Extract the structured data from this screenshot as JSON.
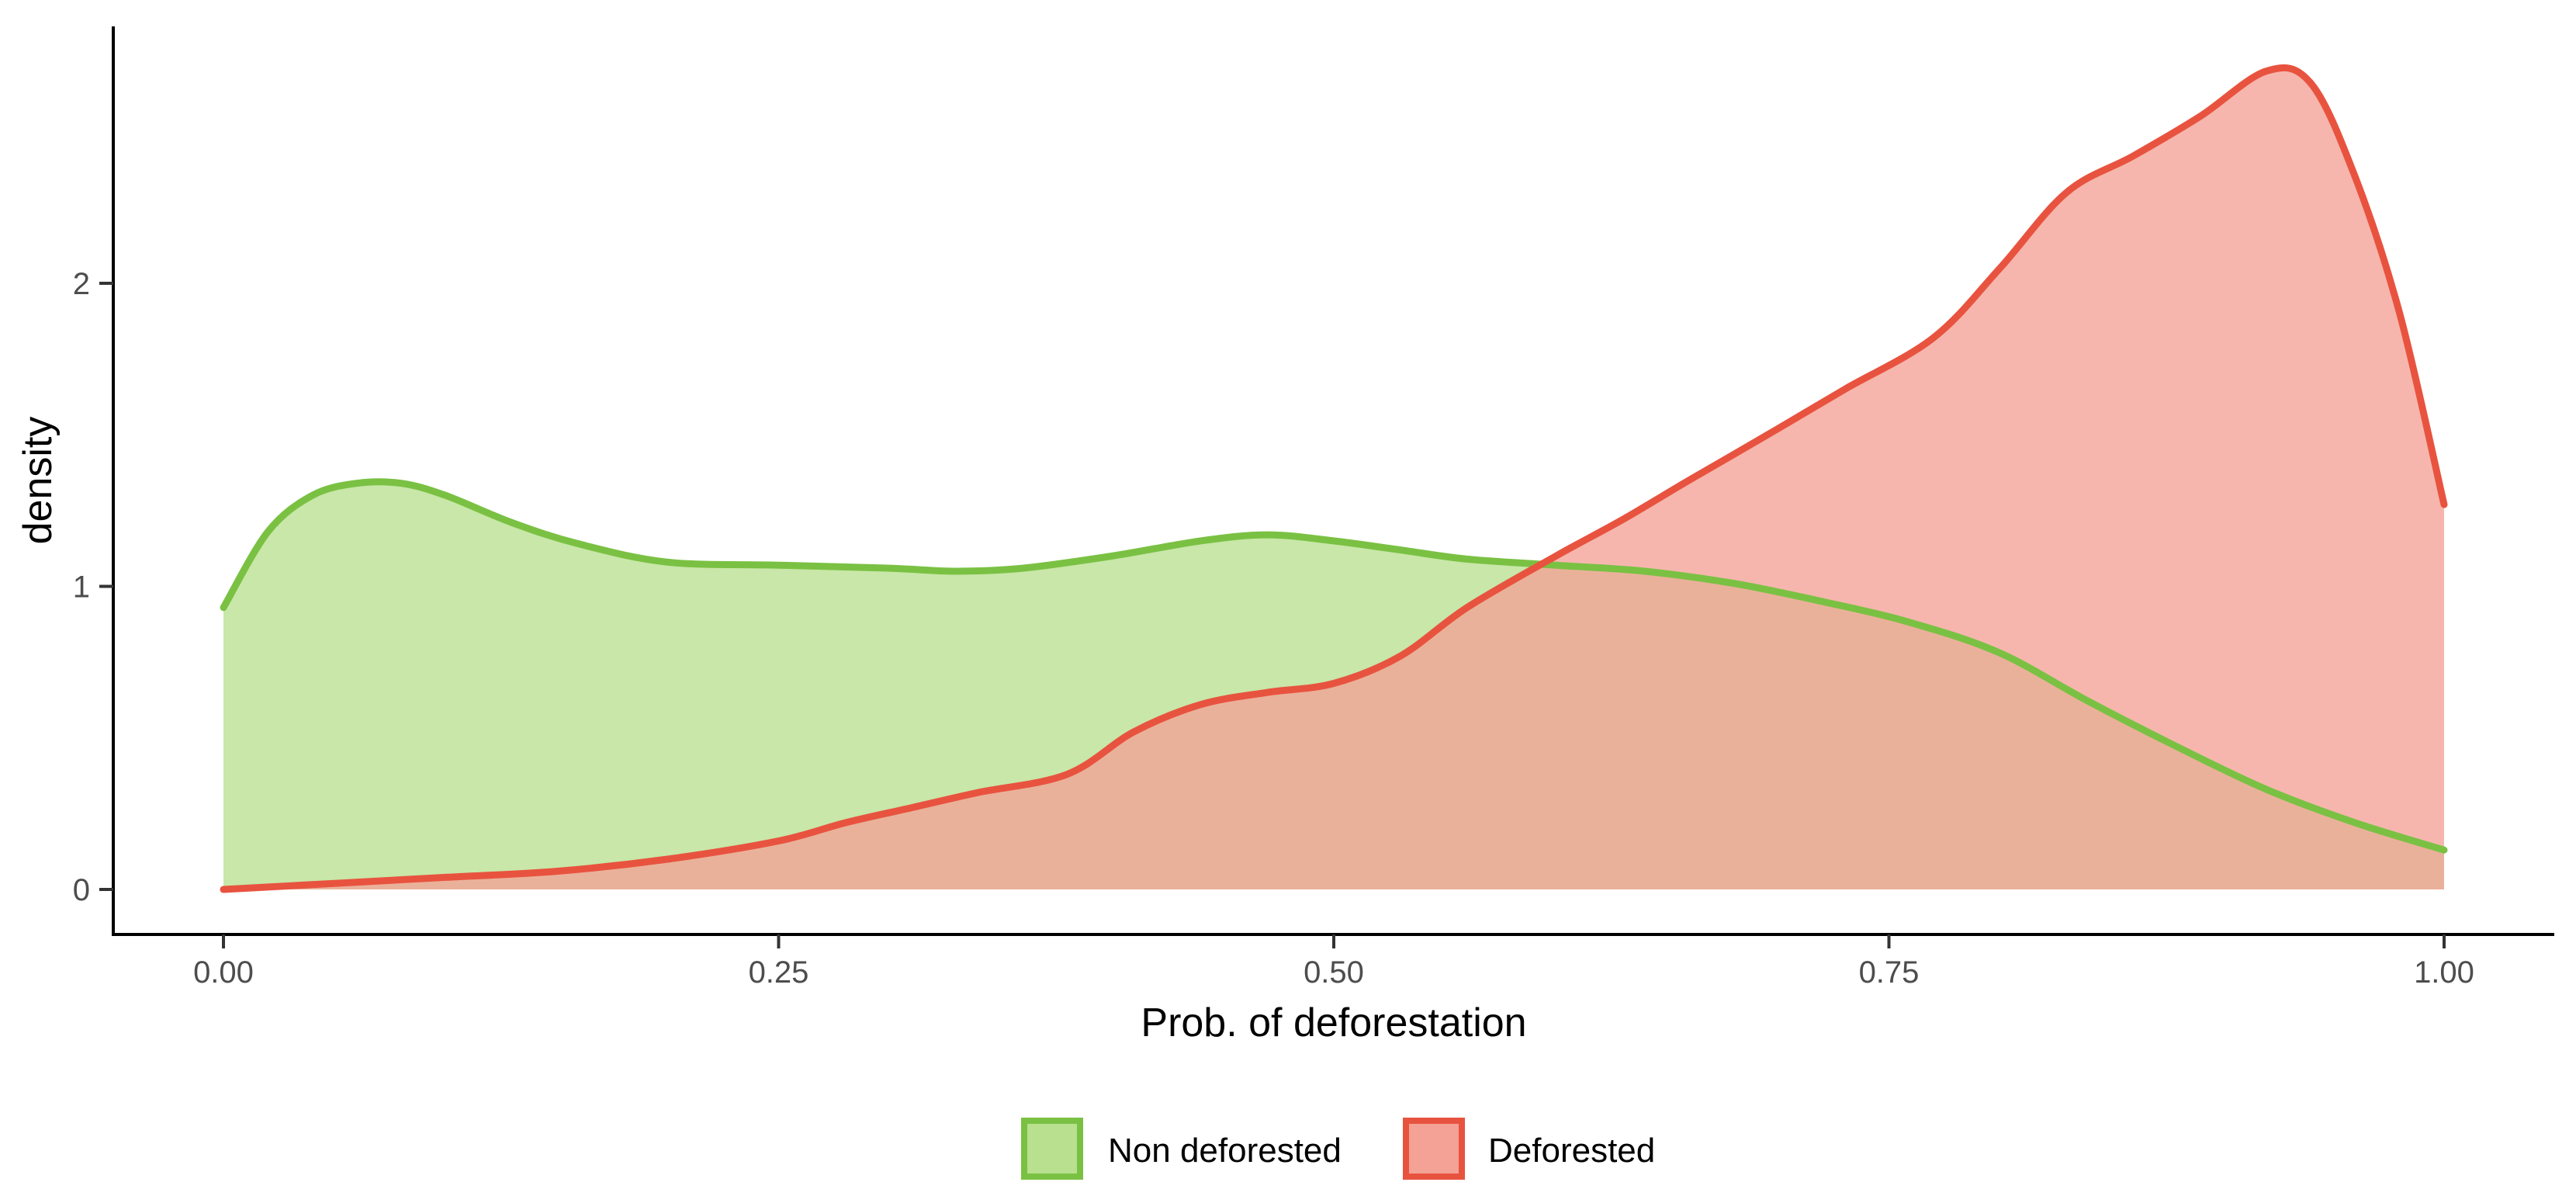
{
  "chart_data": {
    "type": "area",
    "title": "",
    "xlabel": "Prob. of deforestation",
    "ylabel": "density",
    "xlim": [
      -0.05,
      1.05
    ],
    "ylim": [
      -0.14,
      2.85
    ],
    "x_ticks": [
      {
        "value": 0.0,
        "label": "0.00"
      },
      {
        "value": 0.25,
        "label": "0.25"
      },
      {
        "value": 0.5,
        "label": "0.50"
      },
      {
        "value": 0.75,
        "label": "0.75"
      },
      {
        "value": 1.0,
        "label": "1.00"
      }
    ],
    "y_ticks": [
      {
        "value": 0,
        "label": "0"
      },
      {
        "value": 1,
        "label": "1"
      },
      {
        "value": 2,
        "label": "2"
      }
    ],
    "grid": false,
    "legend_position": "bottom",
    "series": [
      {
        "name": "Non deforested",
        "color": "#7ac143",
        "fill": "#b8e08f",
        "x": [
          0.0,
          0.02,
          0.04,
          0.06,
          0.08,
          0.1,
          0.13,
          0.16,
          0.2,
          0.25,
          0.3,
          0.33,
          0.36,
          0.4,
          0.44,
          0.47,
          0.5,
          0.53,
          0.56,
          0.6,
          0.64,
          0.68,
          0.72,
          0.76,
          0.8,
          0.84,
          0.88,
          0.92,
          0.96,
          1.0
        ],
        "values": [
          0.93,
          1.18,
          1.3,
          1.34,
          1.34,
          1.3,
          1.21,
          1.14,
          1.08,
          1.07,
          1.06,
          1.05,
          1.06,
          1.1,
          1.15,
          1.17,
          1.15,
          1.12,
          1.09,
          1.07,
          1.05,
          1.01,
          0.95,
          0.88,
          0.78,
          0.62,
          0.47,
          0.33,
          0.22,
          0.13
        ]
      },
      {
        "name": "Deforested",
        "color": "#e8533f",
        "fill": "#f4a196",
        "x": [
          0.0,
          0.05,
          0.1,
          0.15,
          0.2,
          0.25,
          0.28,
          0.31,
          0.34,
          0.38,
          0.41,
          0.44,
          0.47,
          0.5,
          0.53,
          0.56,
          0.6,
          0.63,
          0.66,
          0.7,
          0.73,
          0.77,
          0.8,
          0.83,
          0.86,
          0.89,
          0.92,
          0.94,
          0.96,
          0.98,
          1.0
        ],
        "values": [
          0.0,
          0.02,
          0.04,
          0.06,
          0.1,
          0.16,
          0.22,
          0.27,
          0.32,
          0.38,
          0.52,
          0.61,
          0.65,
          0.68,
          0.77,
          0.93,
          1.1,
          1.22,
          1.35,
          1.52,
          1.65,
          1.82,
          2.05,
          2.3,
          2.42,
          2.55,
          2.7,
          2.66,
          2.35,
          1.9,
          1.27
        ]
      }
    ]
  }
}
